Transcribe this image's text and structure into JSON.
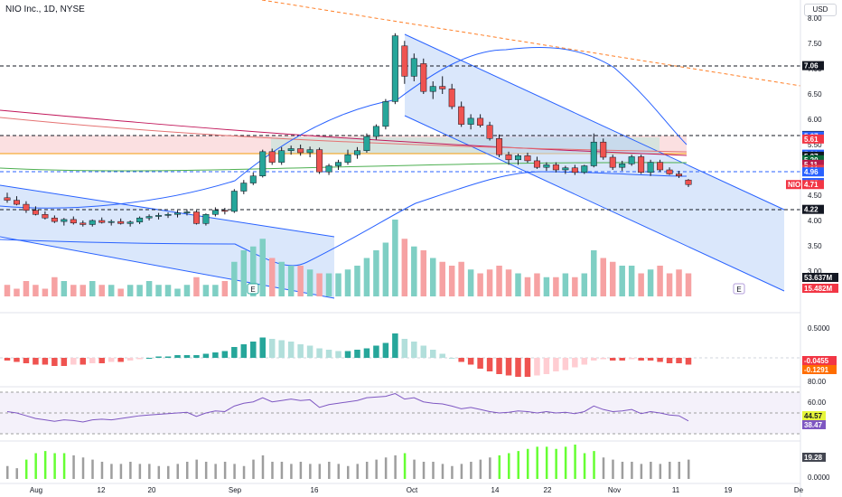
{
  "symbol_title": "NIO Inc., 1D, NYSE",
  "currency": "USD",
  "price_axis": {
    "ticks": [
      "8.00",
      "7.50",
      "7.00",
      "6.50",
      "6.00",
      "5.50",
      "5.00",
      "4.50",
      "4.00",
      "3.50",
      "3.00"
    ],
    "tags": [
      {
        "label": "7.06",
        "bg": "#131722",
        "fg": "#ffffff"
      },
      {
        "label": "5.68",
        "bg": "#131722",
        "fg": "#ffffff"
      },
      {
        "label": "5.67",
        "bg": "#2962ff",
        "fg": "#ffffff"
      },
      {
        "label": "5.61",
        "bg": "#f23645",
        "fg": "#ffffff"
      },
      {
        "label": "5.31",
        "bg": "#2962ff",
        "fg": "#ffffff"
      },
      {
        "label": "5.27",
        "bg": "#131722",
        "fg": "#ffffff"
      },
      {
        "label": "5.20",
        "bg": "#0b6b3a",
        "fg": "#ffffff"
      },
      {
        "label": "5.11",
        "bg": "#b71c4a",
        "fg": "#ffffff"
      },
      {
        "label": "5.01",
        "bg": "#e8414b",
        "fg": "#ffffff"
      },
      {
        "label": "4.96",
        "bg": "#2962ff",
        "fg": "#ffffff"
      },
      {
        "label": "4.75",
        "bg": "#2962ff",
        "fg": "#ffffff"
      },
      {
        "label": "4.71",
        "bg": "#f23645",
        "fg": "#ffffff"
      },
      {
        "label": "4.22",
        "bg": "#131722",
        "fg": "#ffffff"
      }
    ],
    "nio_tag": "NIO",
    "volume_tags": [
      {
        "label": "53.637M",
        "bg": "#131722",
        "fg": "#ffffff"
      },
      {
        "label": "15.482M",
        "bg": "#f23645",
        "fg": "#ffffff"
      }
    ]
  },
  "macd_axis": {
    "ticks": [
      "0.5000"
    ],
    "tags": [
      {
        "label": "-0.0455",
        "bg": "#f23645",
        "fg": "#ffffff"
      },
      {
        "label": "-0.1291",
        "bg": "#ff6d00",
        "fg": "#ffffff"
      }
    ]
  },
  "rsi_axis": {
    "ticks": [
      "80.00",
      "60.00"
    ],
    "tags": [
      {
        "label": "44.57",
        "bg": "#e6f53b",
        "fg": "#131722"
      },
      {
        "label": "38.47",
        "bg": "#7e57c2",
        "fg": "#ffffff"
      }
    ]
  },
  "vol_axis": {
    "ticks": [
      "0.0000"
    ],
    "tags": [
      {
        "label": "19.28",
        "bg": "#434651",
        "fg": "#ffffff"
      }
    ]
  },
  "time_axis": [
    "Aug",
    "12",
    "20",
    "Sep",
    "16",
    "Oct",
    "14",
    "22",
    "Nov",
    "11",
    "19",
    "De"
  ],
  "earnings_marker": "E",
  "chart_data": {
    "type": "candlestick",
    "title": "NIO Inc., 1D, NYSE",
    "ylim": [
      3.0,
      8.0
    ],
    "candles": [
      [
        4.45,
        4.55,
        4.35,
        4.4
      ],
      [
        4.4,
        4.48,
        4.3,
        4.32
      ],
      [
        4.32,
        4.38,
        4.15,
        4.2
      ],
      [
        4.2,
        4.28,
        4.1,
        4.12
      ],
      [
        4.12,
        4.18,
        4.02,
        4.05
      ],
      [
        4.05,
        4.1,
        3.95,
        3.98
      ],
      [
        3.98,
        4.05,
        3.9,
        4.02
      ],
      [
        4.02,
        4.08,
        3.92,
        3.95
      ],
      [
        3.95,
        4.0,
        3.88,
        3.92
      ],
      [
        3.92,
        4.02,
        3.88,
        4.0
      ],
      [
        4.0,
        4.06,
        3.94,
        3.96
      ],
      [
        3.96,
        4.02,
        3.9,
        3.98
      ],
      [
        3.98,
        4.04,
        3.92,
        3.94
      ],
      [
        3.94,
        4.0,
        3.88,
        3.97
      ],
      [
        3.97,
        4.08,
        3.93,
        4.05
      ],
      [
        4.05,
        4.12,
        4.0,
        4.08
      ],
      [
        4.08,
        4.15,
        4.02,
        4.1
      ],
      [
        4.1,
        4.16,
        4.05,
        4.12
      ],
      [
        4.12,
        4.2,
        4.06,
        4.15
      ],
      [
        4.15,
        4.22,
        4.1,
        4.17
      ],
      [
        4.17,
        4.2,
        3.92,
        3.94
      ],
      [
        3.94,
        4.14,
        3.9,
        4.12
      ],
      [
        4.12,
        4.26,
        4.08,
        4.2
      ],
      [
        4.2,
        4.25,
        4.12,
        4.18
      ],
      [
        4.18,
        4.62,
        4.15,
        4.58
      ],
      [
        4.58,
        4.8,
        4.52,
        4.74
      ],
      [
        4.74,
        4.95,
        4.7,
        4.88
      ],
      [
        4.88,
        5.4,
        4.85,
        5.36
      ],
      [
        5.36,
        5.42,
        5.1,
        5.15
      ],
      [
        5.15,
        5.45,
        5.1,
        5.38
      ],
      [
        5.38,
        5.48,
        5.3,
        5.42
      ],
      [
        5.42,
        5.5,
        5.28,
        5.34
      ],
      [
        5.34,
        5.46,
        5.25,
        5.4
      ],
      [
        5.4,
        5.44,
        4.92,
        4.96
      ],
      [
        4.96,
        5.12,
        4.9,
        5.08
      ],
      [
        5.08,
        5.2,
        5.0,
        5.15
      ],
      [
        5.15,
        5.4,
        5.1,
        5.3
      ],
      [
        5.3,
        5.45,
        5.22,
        5.38
      ],
      [
        5.38,
        5.72,
        5.34,
        5.66
      ],
      [
        5.66,
        5.9,
        5.6,
        5.86
      ],
      [
        5.86,
        6.4,
        5.8,
        6.35
      ],
      [
        6.35,
        7.7,
        6.3,
        7.65
      ],
      [
        7.45,
        7.55,
        6.7,
        6.85
      ],
      [
        6.85,
        7.3,
        6.75,
        7.2
      ],
      [
        7.1,
        7.2,
        6.5,
        6.55
      ],
      [
        6.55,
        6.75,
        6.4,
        6.65
      ],
      [
        6.65,
        6.85,
        6.5,
        6.6
      ],
      [
        6.6,
        6.7,
        6.2,
        6.25
      ],
      [
        6.25,
        6.35,
        5.85,
        5.9
      ],
      [
        5.9,
        6.1,
        5.8,
        6.02
      ],
      [
        6.02,
        6.1,
        5.84,
        5.88
      ],
      [
        5.88,
        5.95,
        5.58,
        5.62
      ],
      [
        5.62,
        5.7,
        5.25,
        5.3
      ],
      [
        5.3,
        5.36,
        5.1,
        5.2
      ],
      [
        5.2,
        5.32,
        5.1,
        5.28
      ],
      [
        5.28,
        5.34,
        5.14,
        5.18
      ],
      [
        5.18,
        5.26,
        5.02,
        5.05
      ],
      [
        5.05,
        5.15,
        4.98,
        5.1
      ],
      [
        5.1,
        5.15,
        4.95,
        5.0
      ],
      [
        5.0,
        5.08,
        4.92,
        5.04
      ],
      [
        5.04,
        5.1,
        4.9,
        4.95
      ],
      [
        4.95,
        5.1,
        4.92,
        5.08
      ],
      [
        5.08,
        5.72,
        5.05,
        5.55
      ],
      [
        5.55,
        5.62,
        5.2,
        5.25
      ],
      [
        5.25,
        5.3,
        5.0,
        5.05
      ],
      [
        5.05,
        5.18,
        4.98,
        5.12
      ],
      [
        5.12,
        5.3,
        5.08,
        5.26
      ],
      [
        5.26,
        5.3,
        4.92,
        4.95
      ],
      [
        4.95,
        5.2,
        4.88,
        5.15
      ],
      [
        5.15,
        5.2,
        4.96,
        5.0
      ],
      [
        5.0,
        5.05,
        4.9,
        4.92
      ],
      [
        4.92,
        4.98,
        4.84,
        4.88
      ],
      [
        4.8,
        4.82,
        4.66,
        4.71
      ]
    ],
    "volume": [
      3,
      2,
      4,
      3,
      2,
      5,
      4,
      3,
      3,
      4,
      3,
      3,
      2,
      3,
      3,
      4,
      3,
      3,
      2,
      3,
      5,
      3,
      3,
      4,
      9,
      12,
      13,
      15,
      10,
      9,
      8,
      8,
      7,
      6,
      6,
      6,
      7,
      8,
      10,
      12,
      14,
      20,
      15,
      13,
      12,
      10,
      9,
      8,
      9,
      7,
      6,
      7,
      8,
      7,
      6,
      5,
      6,
      5,
      5,
      6,
      5,
      6,
      12,
      10,
      9,
      8,
      8,
      6,
      7,
      8,
      6,
      7,
      6
    ],
    "macd_hist": [
      -0.02,
      -0.03,
      -0.04,
      -0.05,
      -0.05,
      -0.06,
      -0.06,
      -0.05,
      -0.05,
      -0.04,
      -0.04,
      -0.03,
      -0.03,
      -0.02,
      -0.01,
      0.0,
      0.01,
      0.01,
      0.02,
      0.02,
      0.02,
      0.03,
      0.04,
      0.05,
      0.08,
      0.1,
      0.12,
      0.15,
      0.14,
      0.13,
      0.12,
      0.1,
      0.09,
      0.07,
      0.06,
      0.05,
      0.05,
      0.06,
      0.07,
      0.09,
      0.11,
      0.18,
      0.14,
      0.12,
      0.09,
      0.06,
      0.03,
      0.0,
      -0.03,
      -0.05,
      -0.08,
      -0.1,
      -0.12,
      -0.13,
      -0.14,
      -0.14,
      -0.13,
      -0.12,
      -0.1,
      -0.09,
      -0.07,
      -0.05,
      -0.02,
      -0.01,
      -0.02,
      -0.02,
      -0.01,
      -0.02,
      -0.02,
      -0.03,
      -0.04,
      -0.04,
      -0.05
    ],
    "rsi": [
      52,
      50,
      46,
      42,
      40,
      38,
      40,
      39,
      37,
      40,
      41,
      40,
      42,
      44,
      46,
      47,
      48,
      49,
      50,
      51,
      45,
      50,
      53,
      52,
      60,
      64,
      66,
      72,
      66,
      68,
      70,
      68,
      69,
      58,
      62,
      64,
      66,
      68,
      72,
      73,
      74,
      78,
      70,
      72,
      66,
      64,
      63,
      60,
      56,
      58,
      55,
      52,
      50,
      51,
      53,
      52,
      50,
      52,
      50,
      51,
      49,
      52,
      60,
      55,
      52,
      53,
      55,
      49,
      52,
      50,
      47,
      46,
      38.47
    ],
    "volatility": [
      6,
      5,
      9,
      12,
      13,
      12,
      12,
      11,
      10,
      9,
      8,
      7,
      7,
      8,
      7,
      7,
      6,
      6,
      7,
      8,
      9,
      8,
      7,
      8,
      7,
      6,
      9,
      11,
      8,
      8,
      7,
      8,
      7,
      7,
      8,
      7,
      6,
      7,
      8,
      9,
      10,
      11,
      12,
      9,
      8,
      8,
      7,
      6,
      7,
      8,
      9,
      10,
      11,
      12,
      13,
      14,
      15,
      15,
      14,
      15,
      16,
      12,
      13,
      10,
      9,
      8,
      8,
      7,
      8,
      7,
      8,
      8,
      9
    ]
  }
}
